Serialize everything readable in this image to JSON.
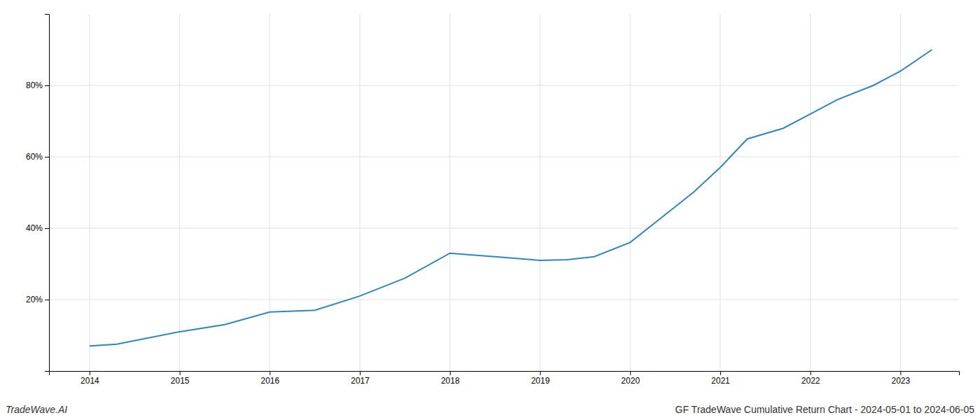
{
  "chart_data": {
    "type": "line",
    "title": "GF TradeWave Cumulative Return Chart - 2024-05-01 to 2024-06-05",
    "annotations": [
      "TradeWave.AI"
    ],
    "x": [
      2014.0,
      2014.3,
      2015.0,
      2015.5,
      2016.0,
      2016.5,
      2017.0,
      2017.5,
      2018.0,
      2018.5,
      2019.0,
      2019.3,
      2019.6,
      2020.0,
      2020.3,
      2020.7,
      2021.0,
      2021.3,
      2021.7,
      2022.0,
      2022.3,
      2022.7,
      2023.0,
      2023.35
    ],
    "values": [
      7,
      7.5,
      11,
      13,
      16.5,
      17,
      21,
      26,
      33,
      32,
      31,
      31.2,
      32,
      36,
      42,
      50,
      57,
      65,
      68,
      72,
      76,
      80,
      84,
      90
    ],
    "color": "#2e86c1",
    "xlim": [
      2013.55,
      2023.65
    ],
    "ylim": [
      0,
      100
    ],
    "xticks": [
      2014,
      2015,
      2016,
      2017,
      2018,
      2019,
      2020,
      2021,
      2022,
      2023
    ],
    "yticks": [
      {
        "value": 20,
        "label": "20%"
      },
      {
        "value": 40,
        "label": "40%"
      },
      {
        "value": 60,
        "label": "60%"
      },
      {
        "value": 80,
        "label": "80%"
      }
    ],
    "grid": true
  }
}
